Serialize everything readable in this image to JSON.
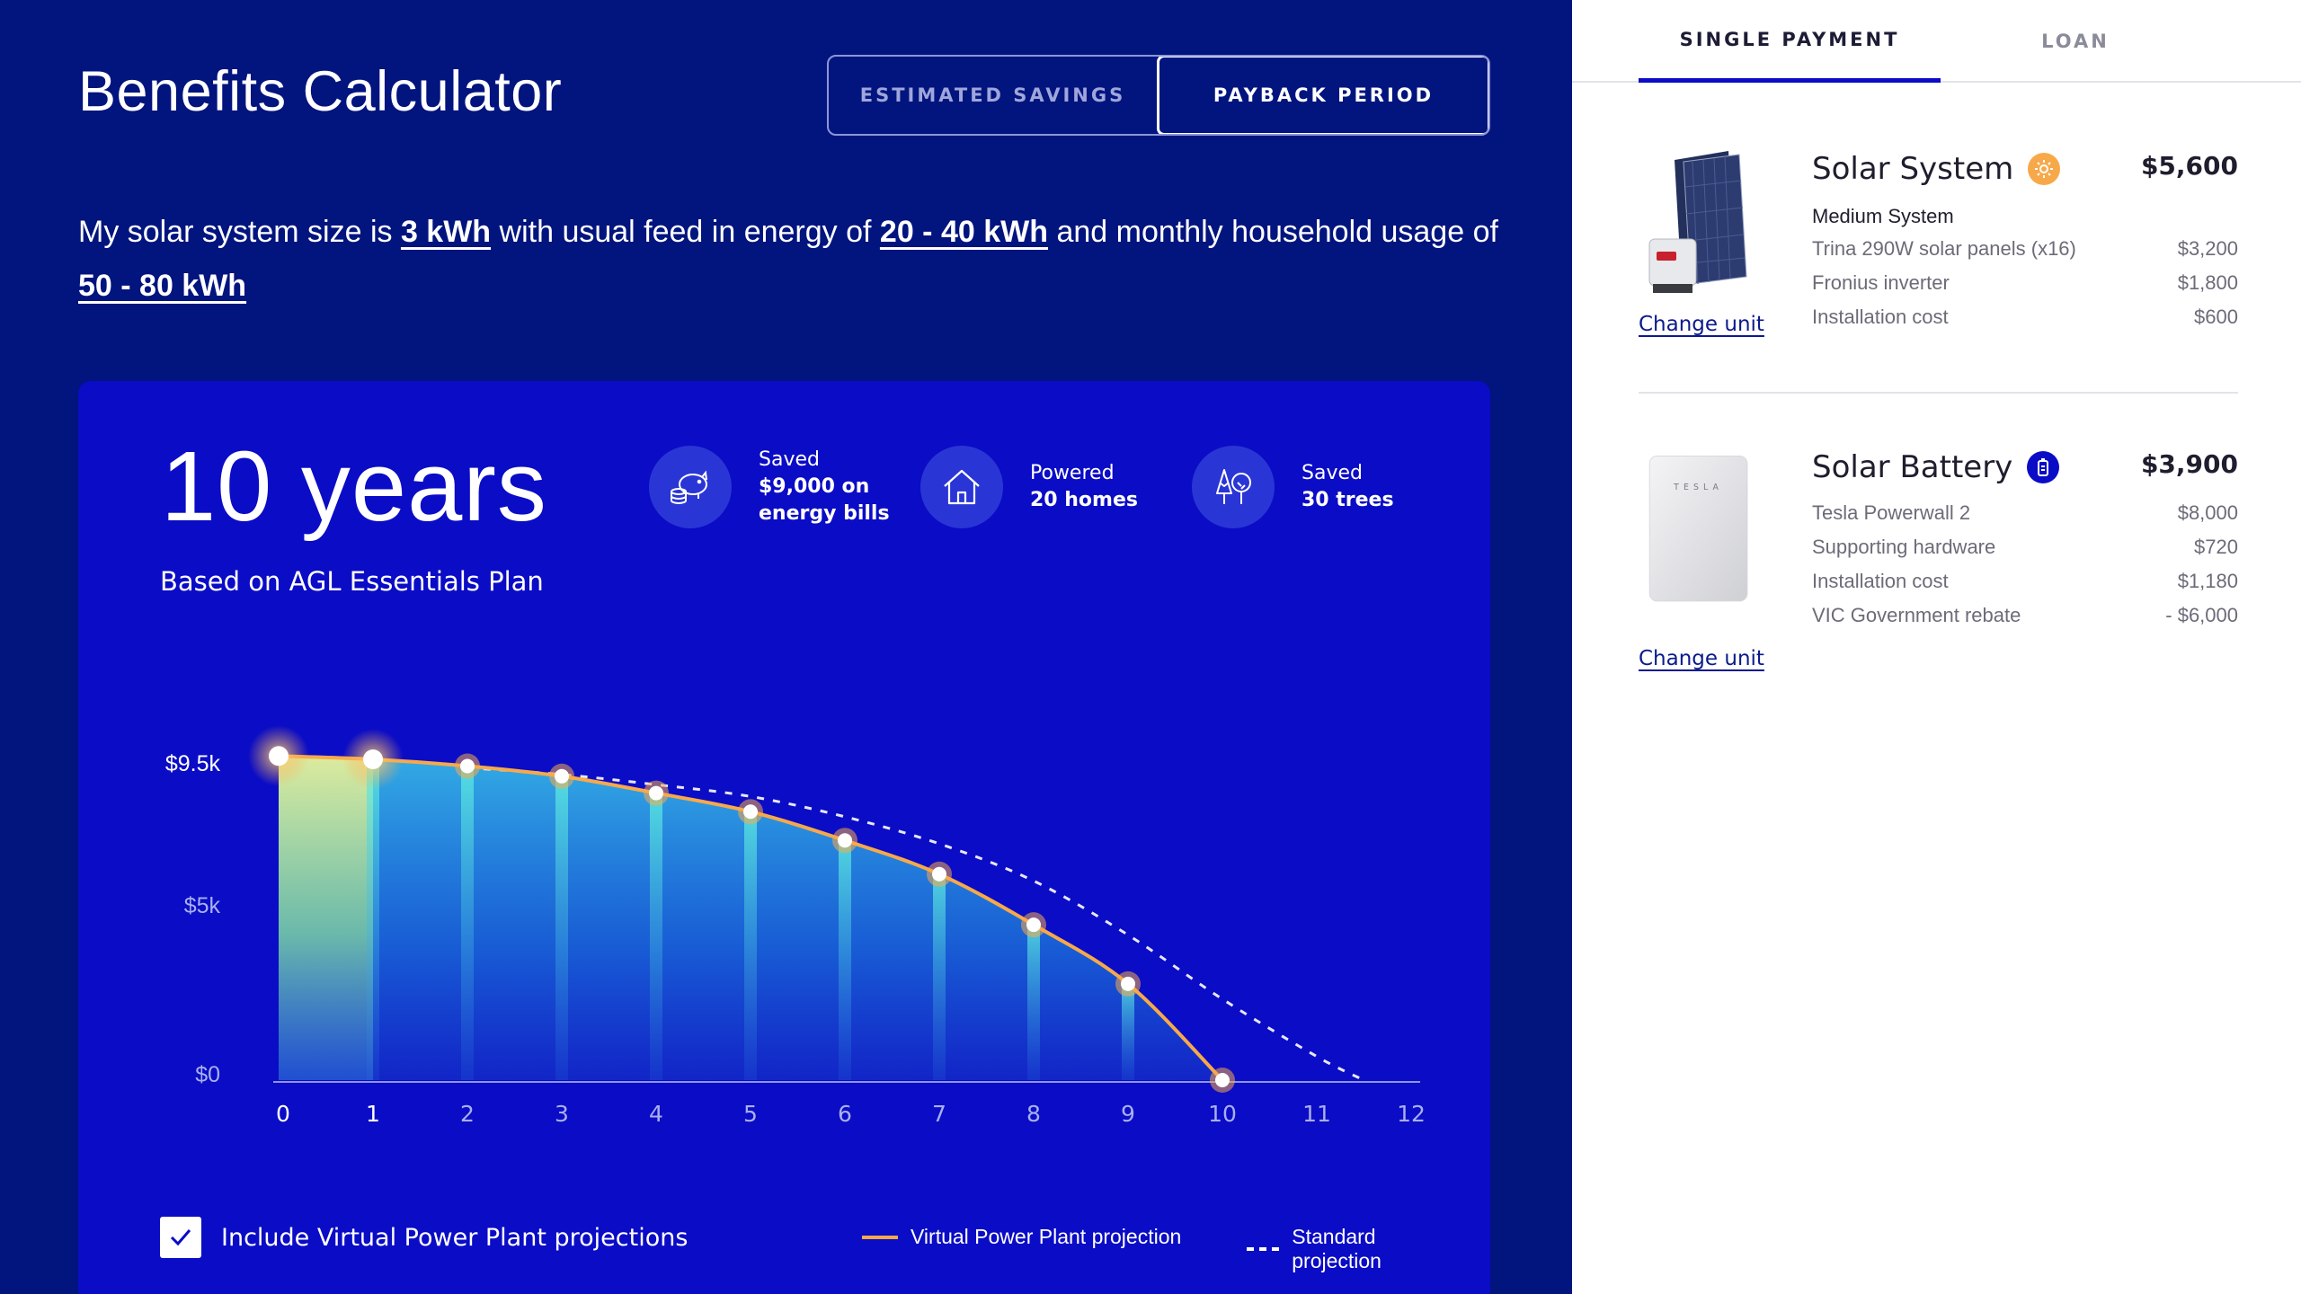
{
  "app_title": "Benefits Calculator",
  "view_toggle": {
    "estimated_savings": "ESTIMATED SAVINGS",
    "payback_period": "PAYBACK PERIOD",
    "active": "payback_period"
  },
  "summary": {
    "prefix": "My solar system size is",
    "system_size": "3 kWh",
    "middle1": "with usual feed in energy of",
    "feed_in": "20 - 40 kWh",
    "middle2": "and monthly household usage of",
    "usage": "50 - 80 kWh"
  },
  "card": {
    "payback": "10 years",
    "plan_note": "Based on AGL Essentials Plan",
    "stats": [
      {
        "icon": "piggy-bank-icon",
        "line1": "Saved",
        "line2": "$9,000 on",
        "line3": "energy bills"
      },
      {
        "icon": "house-icon",
        "line1": "Powered",
        "line2": "20 homes",
        "line3": ""
      },
      {
        "icon": "trees-icon",
        "line1": "Saved",
        "line2": "30 trees",
        "line3": ""
      }
    ],
    "vpp_toggle_label": "Include Virtual Power Plant projections",
    "vpp_checked": true,
    "legend": {
      "vpp": "Virtual Power Plant projection",
      "standard": "Standard projection"
    }
  },
  "chart_data": {
    "type": "area",
    "title": "",
    "xlabel": "",
    "ylabel": "",
    "x": [
      0,
      1,
      2,
      3,
      4,
      5,
      6,
      7,
      8,
      9,
      10,
      11,
      12
    ],
    "x_tick_labels": [
      "0",
      "1",
      "2",
      "3",
      "4",
      "5",
      "6",
      "7",
      "8",
      "9",
      "10",
      "11",
      "12"
    ],
    "y_tick_labels": [
      "$9.5k",
      "$5k",
      "$0"
    ],
    "y_ticks": [
      9500,
      5000,
      0
    ],
    "ylim": [
      0,
      9500
    ],
    "xlim": [
      0,
      12
    ],
    "grid": false,
    "legend_position": "bottom",
    "series": [
      {
        "name": "Virtual Power Plant projection",
        "color": "#f7a94a",
        "x": [
          0,
          1,
          2,
          3,
          4,
          5,
          6,
          7,
          8,
          9,
          10
        ],
        "values": [
          9600,
          9500,
          9300,
          9000,
          8500,
          7950,
          7100,
          6100,
          4600,
          2850,
          0
        ]
      },
      {
        "name": "Standard projection",
        "color": "#ffffff",
        "style": "dashed",
        "x": [
          2,
          3,
          4,
          5,
          6,
          7,
          8,
          9,
          10,
          11,
          11.5
        ],
        "values": [
          9250,
          9050,
          8750,
          8400,
          7800,
          7000,
          5900,
          4300,
          2400,
          700,
          0
        ]
      }
    ],
    "highlighted_x": [
      0,
      1
    ]
  },
  "right_panel": {
    "tabs": {
      "single_payment": "SINGLE PAYMENT",
      "loan": "LOAN",
      "active": "single_payment"
    },
    "items": [
      {
        "name": "Solar System",
        "badge_icon": "sun-icon",
        "price": "$5,600",
        "subtitle": "Medium System",
        "lines": [
          {
            "label": "Trina 290W solar panels (x16)",
            "value": "$3,200"
          },
          {
            "label": "Fronius inverter",
            "value": "$1,800"
          },
          {
            "label": "Installation cost",
            "value": "$600"
          }
        ],
        "change_label": "Change unit"
      },
      {
        "name": "Solar Battery",
        "badge_icon": "battery-icon",
        "price": "$3,900",
        "subtitle": "",
        "brand_mark": "TESLA",
        "lines": [
          {
            "label": "Tesla Powerwall 2",
            "value": "$8,000"
          },
          {
            "label": "Supporting hardware",
            "value": "$720"
          },
          {
            "label": "Installation cost",
            "value": "$1,180"
          },
          {
            "label": "VIC Government rebate",
            "value": "- $6,000"
          }
        ],
        "change_label": "Change unit"
      }
    ]
  },
  "colors": {
    "panel_bg": "#02147e",
    "card_bg": "#0b0cc6",
    "accent": "#f7a94a",
    "link": "#0b1a8c"
  }
}
